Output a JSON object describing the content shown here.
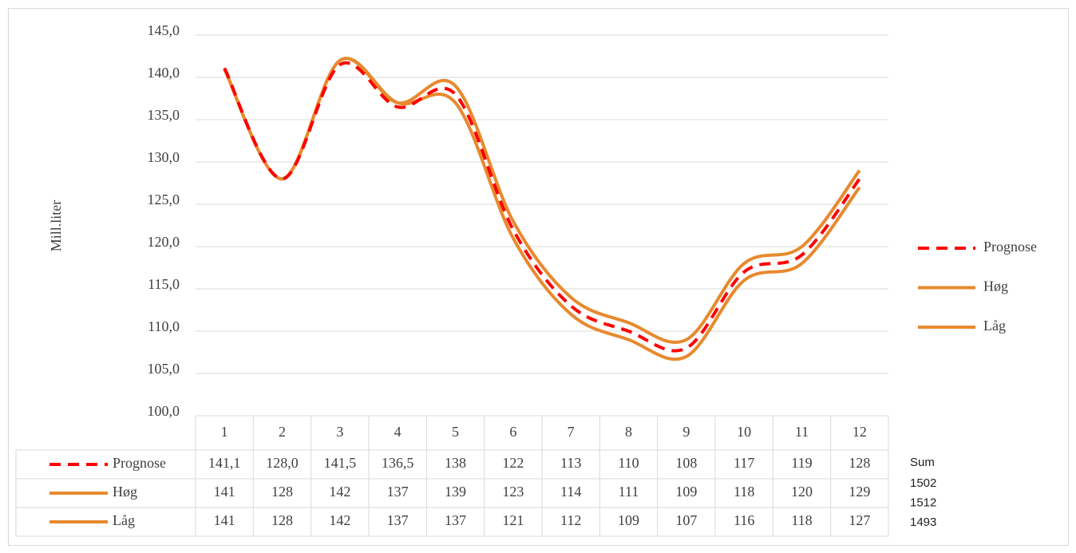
{
  "chart_data": {
    "type": "line",
    "y_label": "Mill.liter",
    "categories": [
      "1",
      "2",
      "3",
      "4",
      "5",
      "6",
      "7",
      "8",
      "9",
      "10",
      "11",
      "12"
    ],
    "ylim": [
      100,
      145
    ],
    "yticks": [
      {
        "value": 100,
        "label": "100,0"
      },
      {
        "value": 105,
        "label": "105,0"
      },
      {
        "value": 110,
        "label": "110,0"
      },
      {
        "value": 115,
        "label": "115,0"
      },
      {
        "value": 120,
        "label": "120,0"
      },
      {
        "value": 125,
        "label": "125,0"
      },
      {
        "value": 130,
        "label": "130,0"
      },
      {
        "value": 135,
        "label": "135,0"
      },
      {
        "value": 140,
        "label": "140,0"
      },
      {
        "value": 145,
        "label": "145,0"
      }
    ],
    "grid": true,
    "legend": "right",
    "series": [
      {
        "name": "Prognose",
        "color": "#ff0000",
        "dashed": true,
        "values": [
          141.1,
          128.0,
          141.5,
          136.5,
          138,
          122,
          113,
          110,
          108,
          117,
          119,
          128
        ],
        "value_labels": [
          "141,1",
          "128,0",
          "141,5",
          "136,5",
          "138",
          "122",
          "113",
          "110",
          "108",
          "117",
          "119",
          "128"
        ]
      },
      {
        "name": "Høg",
        "color": "#e8892e",
        "dashed": false,
        "values": [
          141,
          128,
          142,
          137,
          139,
          123,
          114,
          111,
          109,
          118,
          120,
          129
        ]
      },
      {
        "name": "Låg",
        "color": "#e8892e",
        "dashed": false,
        "values": [
          141,
          128,
          142,
          137,
          137,
          121,
          112,
          109,
          107,
          116,
          118,
          127
        ]
      }
    ],
    "totals": {
      "label": "Sum",
      "values": [
        1502,
        1512,
        1493
      ]
    }
  }
}
